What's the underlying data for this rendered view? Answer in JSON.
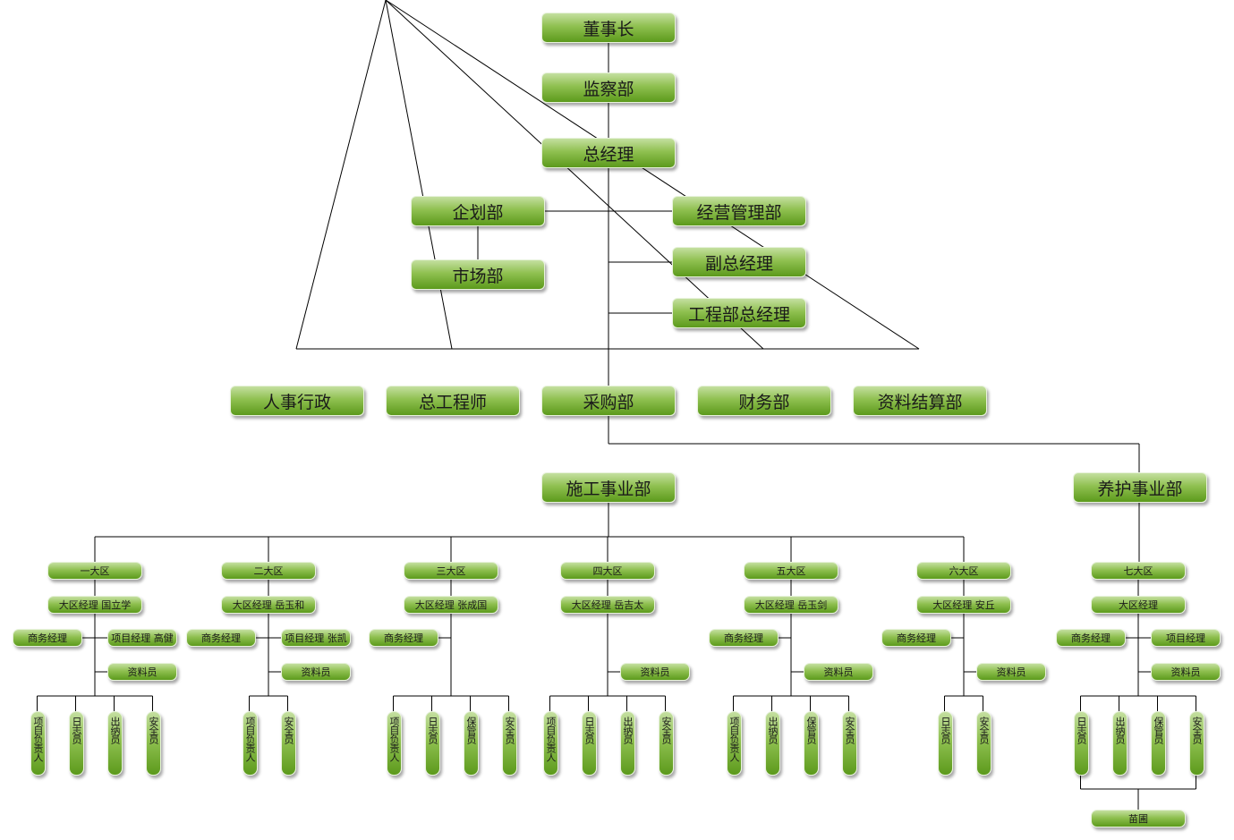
{
  "top": {
    "chairman": "董事长",
    "supervision": "监察部",
    "general_manager": "总经理",
    "planning": "企划部",
    "market": "市场部",
    "operations": "经营管理部",
    "deputy_gm": "副总经理",
    "engineering_gm": "工程部总经理",
    "hr": "人事行政",
    "chief_engineer": "总工程师",
    "purchasing": "采购部",
    "finance": "财务部",
    "settlement": "资料结算部",
    "construction": "施工事业部",
    "maintenance": "养护事业部"
  },
  "districts": [
    {
      "name": "一大区",
      "manager": "大区经理 国立学",
      "business": "商务经理",
      "project": "项目经理 高健",
      "clerk": "资料员",
      "roles": [
        "项目负责人",
        "日志员",
        "出纳员",
        "安全员"
      ]
    },
    {
      "name": "二大区",
      "manager": "大区经理 岳玉和",
      "business": "商务经理",
      "project": "项目经理 张凯",
      "clerk": "资料员",
      "roles": [
        "项目负责人",
        "安全员"
      ]
    },
    {
      "name": "三大区",
      "manager": "大区经理 张成国",
      "business": "商务经理",
      "roles": [
        "项目负责人",
        "日志员",
        "保管员",
        "安全员"
      ]
    },
    {
      "name": "四大区",
      "manager": "大区经理 岳吉太",
      "clerk": "资料员",
      "roles": [
        "项目负责人",
        "日志员",
        "出纳员",
        "安全员"
      ]
    },
    {
      "name": "五大区",
      "manager": "大区经理 岳玉剑",
      "business": "商务经理",
      "clerk": "资料员",
      "roles": [
        "项目负责人",
        "出纳员",
        "保管员",
        "安全员"
      ]
    },
    {
      "name": "六大区",
      "manager": "大区经理 安丘",
      "business": "商务经理",
      "clerk": "资料员",
      "roles": [
        "日志员",
        "安全员"
      ]
    },
    {
      "name": "七大区",
      "manager": "大区经理",
      "business": "商务经理",
      "project": "项目经理",
      "clerk": "资料员",
      "roles": [
        "日志员",
        "出纳员",
        "保管员",
        "安全员"
      ],
      "nursery": "苗圃"
    }
  ],
  "colors": {
    "box_top": "#c4dfa0",
    "box_bottom": "#5c9a1c",
    "line": "#000000"
  }
}
